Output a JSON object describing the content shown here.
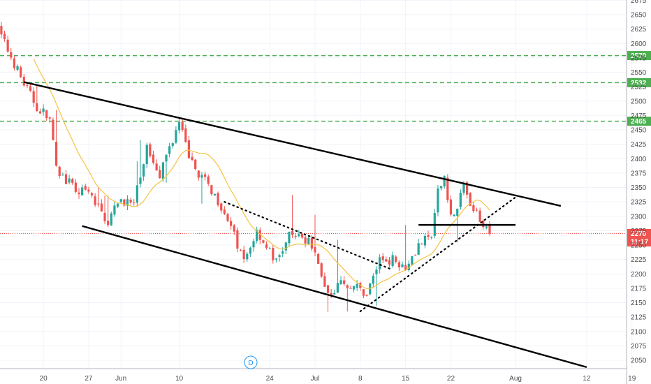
{
  "chart_data": {
    "type": "candlestick",
    "symbol_interval_badge": "D",
    "x_tick_labels": [
      "20",
      "27",
      "Jun",
      "10",
      "24",
      "Jul",
      "8",
      "15",
      "22",
      "Aug",
      "12",
      "19"
    ],
    "x_tick_days": [
      -42,
      -35,
      -30,
      -21,
      -7,
      0,
      7,
      14,
      21,
      31,
      42,
      49
    ],
    "ylim": [
      2035,
      2680
    ],
    "y_ticks": [
      2050,
      2075,
      2100,
      2125,
      2150,
      2175,
      2200,
      2225,
      2250,
      2275,
      2300,
      2325,
      2350,
      2375,
      2400,
      2425,
      2450,
      2475,
      2500,
      2525,
      2550,
      2575,
      2600,
      2625,
      2650,
      2675
    ],
    "current_price": {
      "value": 2270,
      "label": "2270",
      "countdown": "11:17",
      "color": "#ef5350"
    },
    "horizontal_levels": [
      {
        "value": 2579,
        "label": "2579",
        "color": "#4caf50"
      },
      {
        "value": 2532,
        "label": "2532",
        "color": "#4caf50"
      },
      {
        "value": 2465,
        "label": "2465",
        "color": "#4caf50"
      }
    ],
    "colors": {
      "up": "#26a69a",
      "down": "#ef5350",
      "moving_average": "#f5c342",
      "trendline": "#000000"
    },
    "trendlines": [
      {
        "style": "solid",
        "from": {
          "day": -45,
          "price": 2533
        },
        "to": {
          "day": 38,
          "price": 2318
        }
      },
      {
        "style": "solid",
        "from": {
          "day": -36,
          "price": 2283
        },
        "to": {
          "day": 42,
          "price": 2038
        }
      },
      {
        "style": "dotted",
        "from": {
          "day": -14,
          "price": 2325
        },
        "to": {
          "day": 12,
          "price": 2207
        }
      },
      {
        "style": "dotted",
        "from": {
          "day": 7,
          "price": 2135
        },
        "to": {
          "day": 31,
          "price": 2333
        }
      },
      {
        "style": "solid",
        "from": {
          "day": 16,
          "price": 2285
        },
        "to": {
          "day": 31,
          "price": 2285
        }
      }
    ],
    "anchors": [
      {
        "day": -50,
        "price": 2650
      },
      {
        "day": -48,
        "price": 2600
      },
      {
        "day": -45,
        "price": 2530
      },
      {
        "day": -43,
        "price": 2490
      },
      {
        "day": -41,
        "price": 2470
      },
      {
        "day": -40,
        "price": 2380
      },
      {
        "day": -37,
        "price": 2345
      },
      {
        "day": -35,
        "price": 2340
      },
      {
        "day": -32,
        "price": 2290
      },
      {
        "day": -30,
        "price": 2330
      },
      {
        "day": -28,
        "price": 2320
      },
      {
        "day": -26,
        "price": 2420
      },
      {
        "day": -24,
        "price": 2375
      },
      {
        "day": -22,
        "price": 2435
      },
      {
        "day": -21,
        "price": 2460
      },
      {
        "day": -19,
        "price": 2390
      },
      {
        "day": -16,
        "price": 2345
      },
      {
        "day": -14,
        "price": 2310
      },
      {
        "day": -11,
        "price": 2220
      },
      {
        "day": -9,
        "price": 2275
      },
      {
        "day": -6,
        "price": 2220
      },
      {
        "day": -4,
        "price": 2265
      },
      {
        "day": -1,
        "price": 2260
      },
      {
        "day": 1,
        "price": 2200
      },
      {
        "day": 2,
        "price": 2162
      },
      {
        "day": 4,
        "price": 2185
      },
      {
        "day": 6,
        "price": 2180
      },
      {
        "day": 8,
        "price": 2165
      },
      {
        "day": 10,
        "price": 2225
      },
      {
        "day": 12,
        "price": 2225
      },
      {
        "day": 14,
        "price": 2215
      },
      {
        "day": 16,
        "price": 2250
      },
      {
        "day": 18,
        "price": 2265
      },
      {
        "day": 19,
        "price": 2340
      },
      {
        "day": 20,
        "price": 2370
      },
      {
        "day": 21,
        "price": 2300
      },
      {
        "day": 22,
        "price": 2310
      },
      {
        "day": 23,
        "price": 2360
      },
      {
        "day": 24,
        "price": 2315
      },
      {
        "day": 25,
        "price": 2305
      },
      {
        "day": 26,
        "price": 2290
      },
      {
        "day": 27,
        "price": 2270
      }
    ]
  }
}
